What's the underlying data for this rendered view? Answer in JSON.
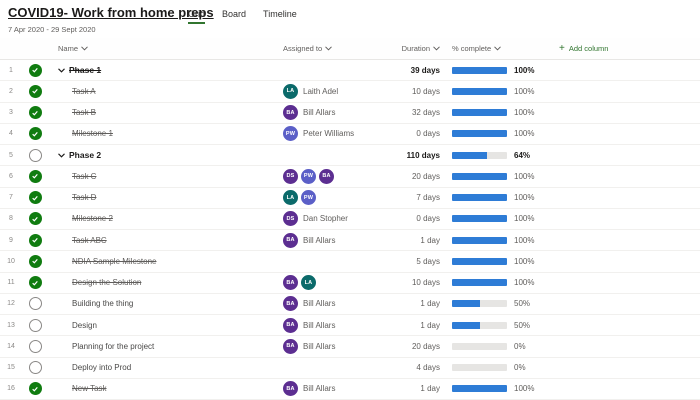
{
  "header": {
    "title": "COVID19- Work from home preps",
    "date_range": "7 Apr 2020 - 29 Sept 2020",
    "tabs": [
      {
        "label": "Grid",
        "active": true
      },
      {
        "label": "Board",
        "active": false
      },
      {
        "label": "Timeline",
        "active": false
      }
    ]
  },
  "columns": {
    "name": "Name",
    "assigned": "Assigned to",
    "duration": "Duration",
    "complete": "% complete",
    "add_column": "Add column"
  },
  "colors": {
    "accent_green": "#31752F",
    "check_green": "#107C10",
    "progress_blue": "#2E7CD6",
    "track_gray": "#E6E5E3",
    "text_dark": "#1B1A19",
    "text_gray": "#605E5C"
  },
  "people": {
    "LA": {
      "initials": "LA",
      "name": "Laith Adel",
      "color": "#0B6A6A"
    },
    "BA": {
      "initials": "BA",
      "name": "Bill Allars",
      "color": "#5C2E91"
    },
    "PW": {
      "initials": "PW",
      "name": "Peter Williams",
      "color": "#5B5FC7"
    },
    "DS": {
      "initials": "DS",
      "name": "Dan Stopher",
      "color": "#5C2E91"
    }
  },
  "rows": [
    {
      "num": 1,
      "phase": true,
      "completed": true,
      "name": "Phase 1",
      "assignees": [],
      "assignee_label": "",
      "duration": "39 days",
      "percent": 100
    },
    {
      "num": 2,
      "phase": false,
      "completed": true,
      "name": "Task A",
      "assignees": [
        "LA"
      ],
      "assignee_label": "Laith Adel",
      "duration": "10 days",
      "percent": 100
    },
    {
      "num": 3,
      "phase": false,
      "completed": true,
      "name": "Task B",
      "assignees": [
        "BA"
      ],
      "assignee_label": "Bill Allars",
      "duration": "32 days",
      "percent": 100
    },
    {
      "num": 4,
      "phase": false,
      "completed": true,
      "name": "Milestone 1",
      "assignees": [
        "PW"
      ],
      "assignee_label": "Peter Williams",
      "duration": "0 days",
      "percent": 100
    },
    {
      "num": 5,
      "phase": true,
      "completed": false,
      "name": "Phase 2",
      "assignees": [],
      "assignee_label": "",
      "duration": "110 days",
      "percent": 64
    },
    {
      "num": 6,
      "phase": false,
      "completed": true,
      "name": "Task C",
      "assignees": [
        "DS",
        "PW",
        "BA"
      ],
      "assignee_label": "",
      "duration": "20 days",
      "percent": 100
    },
    {
      "num": 7,
      "phase": false,
      "completed": true,
      "name": "Task D",
      "assignees": [
        "LA",
        "PW"
      ],
      "assignee_label": "",
      "duration": "7 days",
      "percent": 100
    },
    {
      "num": 8,
      "phase": false,
      "completed": true,
      "name": "Milestone 2",
      "assignees": [
        "DS"
      ],
      "assignee_label": "Dan Stopher",
      "duration": "0 days",
      "percent": 100
    },
    {
      "num": 9,
      "phase": false,
      "completed": true,
      "name": "Task ABC",
      "assignees": [
        "BA"
      ],
      "assignee_label": "Bill Allars",
      "duration": "1 day",
      "percent": 100
    },
    {
      "num": 10,
      "phase": false,
      "completed": true,
      "name": "NDIA Sample Milestone",
      "assignees": [],
      "assignee_label": "",
      "duration": "5 days",
      "percent": 100
    },
    {
      "num": 11,
      "phase": false,
      "completed": true,
      "name": "Design the Solution",
      "assignees": [
        "BA",
        "LA"
      ],
      "assignee_label": "",
      "duration": "10 days",
      "percent": 100
    },
    {
      "num": 12,
      "phase": false,
      "completed": false,
      "name": "Building the thing",
      "assignees": [
        "BA"
      ],
      "assignee_label": "Bill Allars",
      "duration": "1 day",
      "percent": 50
    },
    {
      "num": 13,
      "phase": false,
      "completed": false,
      "name": "Design",
      "assignees": [
        "BA"
      ],
      "assignee_label": "Bill Allars",
      "duration": "1 day",
      "percent": 50
    },
    {
      "num": 14,
      "phase": false,
      "completed": false,
      "name": "Planning for the project",
      "assignees": [
        "BA"
      ],
      "assignee_label": "Bill Allars",
      "duration": "20 days",
      "percent": 0
    },
    {
      "num": 15,
      "phase": false,
      "completed": false,
      "name": "Deploy into Prod",
      "assignees": [],
      "assignee_label": "",
      "duration": "4 days",
      "percent": 0
    },
    {
      "num": 16,
      "phase": false,
      "completed": true,
      "name": "New Task",
      "assignees": [
        "BA"
      ],
      "assignee_label": "Bill Allars",
      "duration": "1 day",
      "percent": 100
    }
  ]
}
